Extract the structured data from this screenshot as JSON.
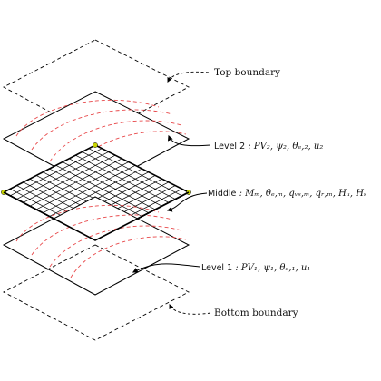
{
  "diagram": {
    "labels": {
      "top_boundary": "Top boundary",
      "bottom_boundary": "Bottom boundary",
      "level2": {
        "name": "Level 2",
        "vars": "PV₂, ψ₂, θₑ,₂, u₂"
      },
      "middle": {
        "name": "Middle",
        "vars": "Mₘ, θₑ,ₘ, qᵥₛ,ₘ, qᵣ,ₘ, Hᵤ, Hₛ"
      },
      "level1": {
        "name": "Level 1",
        "vars": "PV₁, ψ₁, θₑ,₁, u₁"
      }
    },
    "colors": {
      "outline": "#000000",
      "red_dashed": "#e8484a",
      "corner_marker": "#c8d400",
      "grid": "#000000"
    }
  }
}
